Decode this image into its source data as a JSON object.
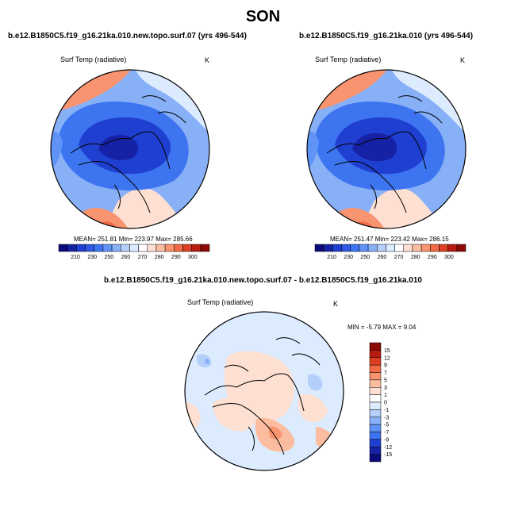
{
  "season_title": "SON",
  "panels": [
    {
      "case": "b.e12.B1850C5.f19_g16.21ka.010.new.topo.surf.07 (yrs 496-544)",
      "variable": "Surf Temp (radiative)",
      "units": "K",
      "stats": "MEAN= 251.81  Min= 223.97  Max= 285.66"
    },
    {
      "case": "b.e12.B1850C5.f19_g16.21ka.010 (yrs 496-544)",
      "variable": "Surf Temp (radiative)",
      "units": "K",
      "stats": "MEAN= 251.47  Min= 223.42  Max= 286.15"
    }
  ],
  "diff_panel": {
    "title": "b.e12.B1850C5.f19_g16.21ka.010.new.topo.surf.07 - b.e12.B1850C5.f19_g16.21ka.010",
    "variable": "Surf Temp (radiative)",
    "units": "K",
    "minmax": "MIN =  -5.79 MAX =   9.04"
  },
  "colorbar_abs": {
    "labels": [
      "210",
      "230",
      "250",
      "260",
      "270",
      "280",
      "290",
      "300"
    ],
    "colors": [
      "#0a0a7a",
      "#1622a6",
      "#1f3fd0",
      "#2c5ae6",
      "#3d74f0",
      "#5f93f5",
      "#87b0f7",
      "#b3cffa",
      "#dcebfd",
      "#ffffff",
      "#fde0d2",
      "#fbbca0",
      "#f89470",
      "#f06a45",
      "#dc3f22",
      "#b81b10",
      "#8a0a05"
    ]
  },
  "colorbar_diff": {
    "labels": [
      "15",
      "12",
      "9",
      "7",
      "5",
      "3",
      "1",
      "0",
      "-1",
      "-3",
      "-5",
      "-7",
      "-9",
      "-12",
      "-15"
    ],
    "colors": [
      "#8a0a05",
      "#b81b10",
      "#dc3f22",
      "#f06a45",
      "#f89470",
      "#fbbca0",
      "#fde0d2",
      "#ffffff",
      "#dcebfd",
      "#b3cffa",
      "#87b0f7",
      "#5f93f5",
      "#3d74f0",
      "#1f3fd0",
      "#1622a6",
      "#0a0a7a"
    ]
  }
}
